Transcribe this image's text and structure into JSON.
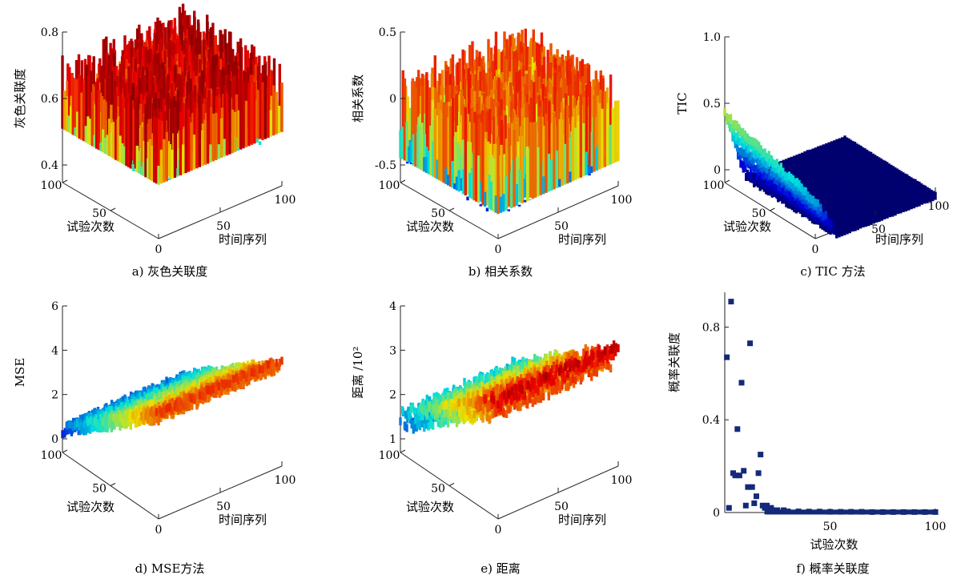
{
  "figure": {
    "panels": [
      {
        "id": "a",
        "caption": "a)  灰色关联度"
      },
      {
        "id": "b",
        "caption": "b)  相关系数"
      },
      {
        "id": "c",
        "caption": "c)  TIC 方法"
      },
      {
        "id": "d",
        "caption": "d)  MSE方法"
      },
      {
        "id": "e",
        "caption": "e)  距离"
      },
      {
        "id": "f",
        "caption": "f)  概率关联度"
      }
    ]
  },
  "colors": {
    "axis": "#222222",
    "jet_low": "#0b1a6e",
    "jet_mid": "#5fd0c0",
    "jet_high": "#c8141c",
    "scatter": "#142a78"
  },
  "chart_data": [
    {
      "id": "a",
      "type": "surface3d",
      "title": "灰色关联度",
      "zlabel": "灰色关联度",
      "xlabel": "时间序列",
      "ylabel": "试验次数",
      "x_ticks": [
        0,
        50,
        100
      ],
      "y_ticks": [
        0,
        50,
        100
      ],
      "zlim": [
        0.4,
        0.8
      ],
      "z_ticks": [
        "0.4",
        "0.6",
        "0.8"
      ],
      "pattern": "noise",
      "z_mean": 0.67,
      "z_amp": 0.12
    },
    {
      "id": "b",
      "type": "surface3d",
      "title": "相关系数",
      "zlabel": "相关系数",
      "xlabel": "时间序列",
      "ylabel": "试验次数",
      "x_ticks": [
        0,
        50,
        100
      ],
      "y_ticks": [
        0,
        50,
        100
      ],
      "zlim": [
        -0.5,
        0.5
      ],
      "z_ticks": [
        "-0.5",
        "0",
        "0.5"
      ],
      "pattern": "noise",
      "z_mean": 0.0,
      "z_amp": 0.35
    },
    {
      "id": "c",
      "type": "surface3d",
      "title": "TIC 方法",
      "zlabel": "TIC",
      "xlabel": "时间序列",
      "ylabel": "试验次数",
      "x_ticks": [
        0,
        50,
        100
      ],
      "y_ticks": [
        0,
        50,
        100
      ],
      "zlim": [
        0,
        1.0
      ],
      "z_ticks": [
        "0",
        "0.5",
        "1.0"
      ],
      "pattern": "edge",
      "z_mean": 0.0,
      "z_amp": 0.55
    },
    {
      "id": "d",
      "type": "surface3d",
      "title": "MSE方法",
      "zlabel": "MSE",
      "xlabel": "时间序列",
      "ylabel": "试验次数",
      "x_ticks": [
        0,
        50,
        100
      ],
      "y_ticks": [
        0,
        50,
        100
      ],
      "zlim": [
        0,
        6
      ],
      "z_ticks": [
        "0",
        "2",
        "4",
        "6"
      ],
      "pattern": "ramp",
      "z_start": 1.2,
      "z_end": 4.8
    },
    {
      "id": "e",
      "type": "surface3d",
      "title": "距离",
      "zlabel": "距离 /10²",
      "xlabel": "时间序列",
      "ylabel": "试验次数",
      "x_ticks": [
        0,
        50,
        100
      ],
      "y_ticks": [
        0,
        50,
        100
      ],
      "zlim": [
        1,
        4
      ],
      "z_ticks": [
        "1",
        "2",
        "3",
        "4"
      ],
      "pattern": "ramp",
      "z_start": 1.8,
      "z_end": 3.6
    },
    {
      "id": "f",
      "type": "scatter",
      "title": "概率关联度",
      "xlabel": "试验次数",
      "ylabel": "概率关联度",
      "xlim": [
        0,
        100
      ],
      "ylim": [
        0,
        0.95
      ],
      "x_ticks": [
        50,
        100
      ],
      "y_ticks": [
        0,
        0.4,
        0.8
      ],
      "points": [
        [
          1,
          0.67
        ],
        [
          2,
          0.02
        ],
        [
          3,
          0.91
        ],
        [
          4,
          0.17
        ],
        [
          5,
          0.16
        ],
        [
          6,
          0.36
        ],
        [
          7,
          0.16
        ],
        [
          8,
          0.56
        ],
        [
          9,
          0.18
        ],
        [
          10,
          0.03
        ],
        [
          11,
          0.11
        ],
        [
          12,
          0.73
        ],
        [
          13,
          0.11
        ],
        [
          14,
          0.04
        ],
        [
          15,
          0.07
        ],
        [
          16,
          0.17
        ],
        [
          17,
          0.25
        ],
        [
          18,
          0.03
        ],
        [
          19,
          0.02
        ],
        [
          20,
          0.03
        ],
        [
          21,
          0.01
        ],
        [
          22,
          0.02
        ],
        [
          23,
          0.01
        ],
        [
          25,
          0.01
        ],
        [
          28,
          0.01
        ],
        [
          30,
          0.005
        ],
        [
          35,
          0.005
        ],
        [
          40,
          0.004
        ],
        [
          45,
          0.004
        ],
        [
          50,
          0.003
        ],
        [
          55,
          0.003
        ],
        [
          60,
          0.003
        ],
        [
          65,
          0.003
        ],
        [
          70,
          0.002
        ],
        [
          75,
          0.002
        ],
        [
          80,
          0.002
        ],
        [
          85,
          0.002
        ],
        [
          90,
          0.002
        ],
        [
          95,
          0.002
        ],
        [
          100,
          0.002
        ]
      ]
    }
  ]
}
